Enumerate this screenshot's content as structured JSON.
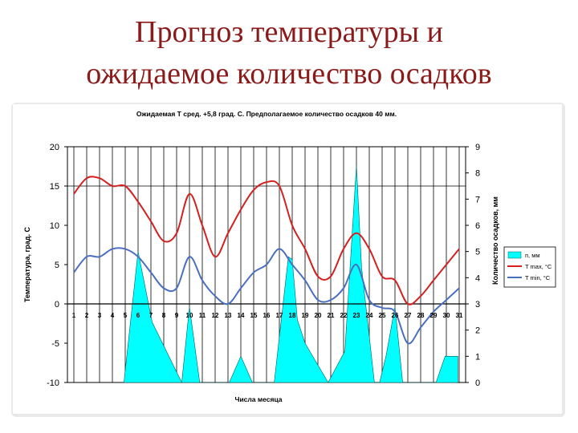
{
  "slide": {
    "title_line1": "Прогноз температуры и",
    "title_line2": "ожидаемое количество осадков"
  },
  "chart_data": {
    "type": "line",
    "title": "Ожидаемая Т сред. +5,8 град. С. Предполагаемое количество осадков 40 мм.",
    "xlabel": "Числа месяца",
    "ylabel_left": "Температура, град. С",
    "ylabel_right": "Количество осадков, мм",
    "x_categories": [
      1,
      2,
      3,
      4,
      5,
      6,
      7,
      8,
      9,
      10,
      11,
      12,
      13,
      14,
      15,
      16,
      17,
      18,
      19,
      20,
      21,
      22,
      23,
      24,
      25,
      26,
      27,
      28,
      29,
      30,
      31
    ],
    "ylim_left": [
      -10,
      20
    ],
    "yticks_left": [
      20,
      15,
      10,
      5,
      0,
      -5,
      -10
    ],
    "ylim_right": [
      0,
      9
    ],
    "yticks_right": [
      9,
      8,
      7,
      6,
      5,
      4,
      3,
      2,
      1,
      0
    ],
    "grid": "vertical lines at each day, horizontal lines at 15 and 0",
    "legend_position": "right",
    "series": [
      {
        "name": "п, мм",
        "axis": "right",
        "chart_type": "area",
        "color": "#00ffff",
        "x": [
          4.9,
          6.0,
          7.1,
          8.4,
          9.4,
          10.0,
          10.8,
          13.1,
          14.0,
          14.9,
          16.6,
          17.7,
          18.0,
          18.4,
          19.0,
          20.8,
          22.1,
          23.0,
          23.4,
          24.4,
          24.8,
          25.3,
          26.0,
          26.6,
          28.2,
          29.2,
          29.9,
          30.9,
          30.9
        ],
        "values": [
          0,
          5.0,
          2.3,
          1.0,
          0,
          2.9,
          0,
          0,
          1.0,
          0,
          0,
          4.8,
          4.7,
          2.4,
          1.5,
          0,
          1.2,
          8.3,
          4.4,
          0,
          0,
          1.0,
          2.9,
          0,
          0,
          0,
          1.0,
          1.0,
          0
        ]
      },
      {
        "name": "T max, °C",
        "axis": "left",
        "chart_type": "line",
        "color": "#d42020",
        "x": [
          1,
          2,
          3,
          4,
          5,
          6,
          7,
          8,
          9,
          10,
          11,
          12,
          13,
          14,
          15,
          16,
          17,
          18,
          19,
          20,
          21,
          22,
          23,
          24,
          25,
          26,
          27,
          28,
          29,
          30,
          31
        ],
        "values": [
          14,
          16,
          16,
          15,
          15,
          13,
          10.5,
          8,
          9,
          14,
          10,
          6,
          9,
          12,
          14.5,
          15.5,
          15,
          10,
          7,
          3.5,
          3.5,
          7,
          9,
          7,
          3.5,
          3,
          0,
          1,
          3,
          5,
          7
        ]
      },
      {
        "name": "T min, °C",
        "axis": "left",
        "chart_type": "line",
        "color": "#4a6fc0",
        "x": [
          1,
          2,
          3,
          4,
          5,
          6,
          7,
          8,
          9,
          10,
          11,
          12,
          13,
          14,
          15,
          16,
          17,
          18,
          19,
          20,
          21,
          22,
          23,
          24,
          25,
          26,
          27,
          28,
          29,
          30,
          31
        ],
        "values": [
          4,
          6,
          6,
          7,
          7,
          6,
          4,
          2,
          2,
          6,
          3,
          1,
          0,
          2,
          4,
          5,
          7,
          5,
          3,
          0.5,
          0.5,
          2,
          5,
          0.5,
          -0.5,
          -1,
          -5,
          -3,
          -1,
          0.5,
          2
        ]
      }
    ],
    "legend": [
      "п, мм",
      "T max, °C",
      "T min, °C"
    ],
    "legend_visible": [
      "п, мм",
      "T max, °C",
      "T min, °C"
    ]
  }
}
